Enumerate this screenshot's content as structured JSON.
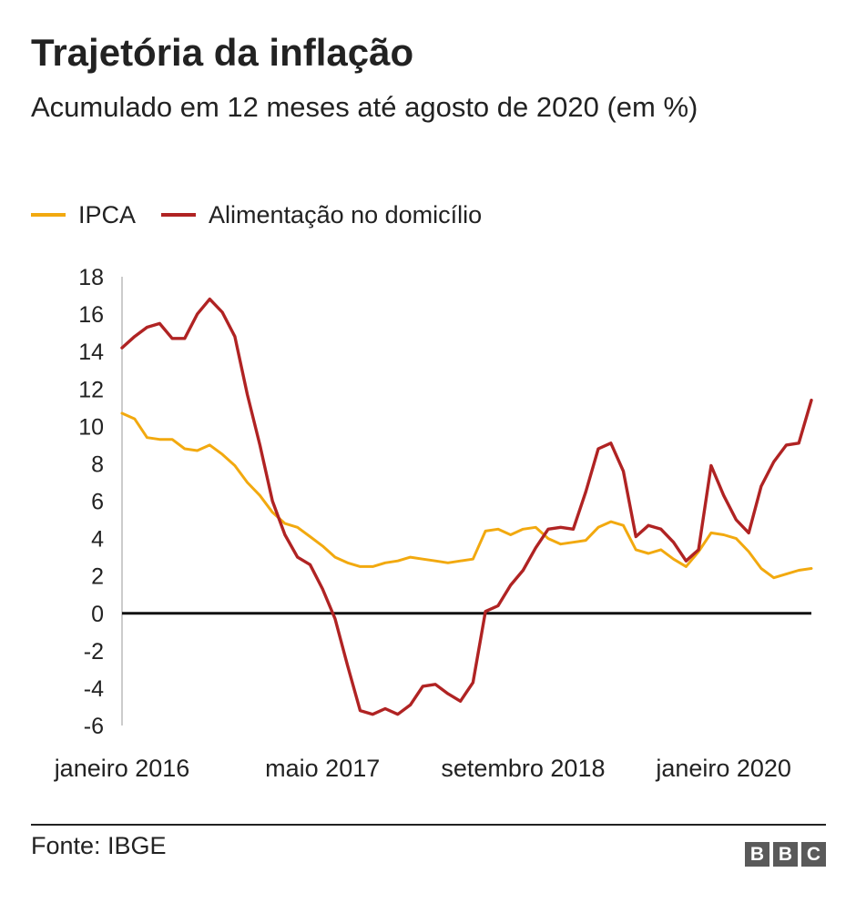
{
  "title": "Trajetória da inflação",
  "subtitle": "Acumulado em 12 meses até agosto de 2020 (em %)",
  "source": "Fonte: IBGE",
  "logo_text": "BBC",
  "colors": {
    "ipca": "#f2a90f",
    "food": "#b02323",
    "zero_line": "#111111",
    "axis": "#cccccc",
    "logo": "#5a5a5a"
  },
  "chart_data": {
    "type": "line",
    "title": "Trajetória da inflação",
    "subtitle": "Acumulado em 12 meses até agosto de 2020 (em %)",
    "x": [
      "2016-01",
      "2016-02",
      "2016-03",
      "2016-04",
      "2016-05",
      "2016-06",
      "2016-07",
      "2016-08",
      "2016-09",
      "2016-10",
      "2016-11",
      "2016-12",
      "2017-01",
      "2017-02",
      "2017-03",
      "2017-04",
      "2017-05",
      "2017-06",
      "2017-07",
      "2017-08",
      "2017-09",
      "2017-10",
      "2017-11",
      "2017-12",
      "2018-01",
      "2018-02",
      "2018-03",
      "2018-04",
      "2018-05",
      "2018-06",
      "2018-07",
      "2018-08",
      "2018-09",
      "2018-10",
      "2018-11",
      "2018-12",
      "2019-01",
      "2019-02",
      "2019-03",
      "2019-04",
      "2019-05",
      "2019-06",
      "2019-07",
      "2019-08",
      "2019-09",
      "2019-10",
      "2019-11",
      "2019-12",
      "2020-01",
      "2020-02",
      "2020-03",
      "2020-04",
      "2020-05",
      "2020-06",
      "2020-07",
      "2020-08"
    ],
    "x_tick_labels": [
      {
        "x": "2016-01",
        "label": "janeiro 2016"
      },
      {
        "x": "2017-05",
        "label": "maio 2017"
      },
      {
        "x": "2018-09",
        "label": "setembro 2018"
      },
      {
        "x": "2020-01",
        "label": "janeiro 2020"
      }
    ],
    "series": [
      {
        "name": "IPCA",
        "color": "#f2a90f",
        "values": [
          10.7,
          10.4,
          9.4,
          9.3,
          9.3,
          8.8,
          8.7,
          9.0,
          8.5,
          7.9,
          7.0,
          6.3,
          5.4,
          4.8,
          4.6,
          4.1,
          3.6,
          3.0,
          2.7,
          2.5,
          2.5,
          2.7,
          2.8,
          3.0,
          2.9,
          2.8,
          2.7,
          2.8,
          2.9,
          4.4,
          4.5,
          4.2,
          4.5,
          4.6,
          4.0,
          3.7,
          3.8,
          3.9,
          4.6,
          4.9,
          4.7,
          3.4,
          3.2,
          3.4,
          2.9,
          2.5,
          3.3,
          4.3,
          4.2,
          4.0,
          3.3,
          2.4,
          1.9,
          2.1,
          2.3,
          2.4
        ]
      },
      {
        "name": "Alimentação no domicílio",
        "color": "#b02323",
        "values": [
          14.2,
          14.8,
          15.3,
          15.5,
          14.7,
          14.7,
          16.0,
          16.8,
          16.1,
          14.8,
          11.7,
          9.0,
          6.0,
          4.2,
          3.0,
          2.6,
          1.3,
          -0.3,
          -2.8,
          -5.2,
          -5.4,
          -5.1,
          -5.4,
          -4.9,
          -3.9,
          -3.8,
          -4.3,
          -4.7,
          -3.7,
          0.1,
          0.4,
          1.5,
          2.3,
          3.5,
          4.5,
          4.6,
          4.5,
          6.5,
          8.8,
          9.1,
          7.6,
          4.1,
          4.7,
          4.5,
          3.8,
          2.8,
          3.4,
          7.9,
          6.3,
          5.0,
          4.3,
          6.8,
          8.1,
          9.0,
          9.1,
          11.4
        ]
      }
    ],
    "ylim": [
      -6,
      18
    ],
    "yticks": [
      18,
      16,
      14,
      12,
      10,
      8,
      6,
      4,
      2,
      0,
      -2,
      -4,
      -6
    ],
    "xlabel": "",
    "ylabel": "",
    "grid": false,
    "zero_line": true,
    "legend_position": "top-left"
  }
}
